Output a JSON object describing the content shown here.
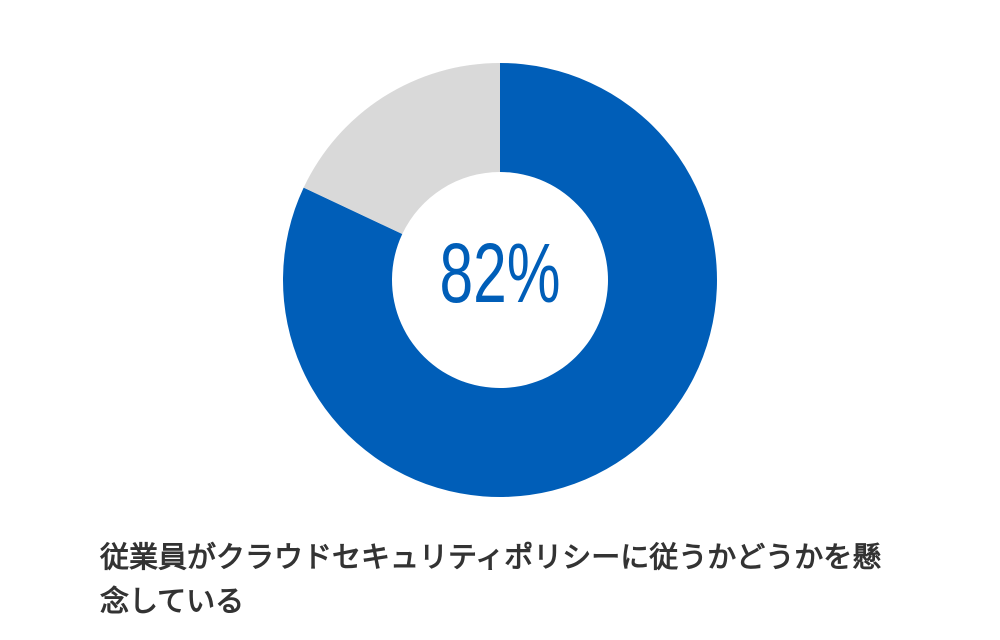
{
  "chart_data": {
    "type": "pie",
    "values": [
      82,
      18
    ],
    "value_labels": [
      "82%",
      null
    ],
    "colors": [
      "#005eb8",
      "#d9d9d9"
    ],
    "donut": true,
    "caption": "従業員がクラウドセキュリティポリシーに従うかどうかを懸念している"
  }
}
